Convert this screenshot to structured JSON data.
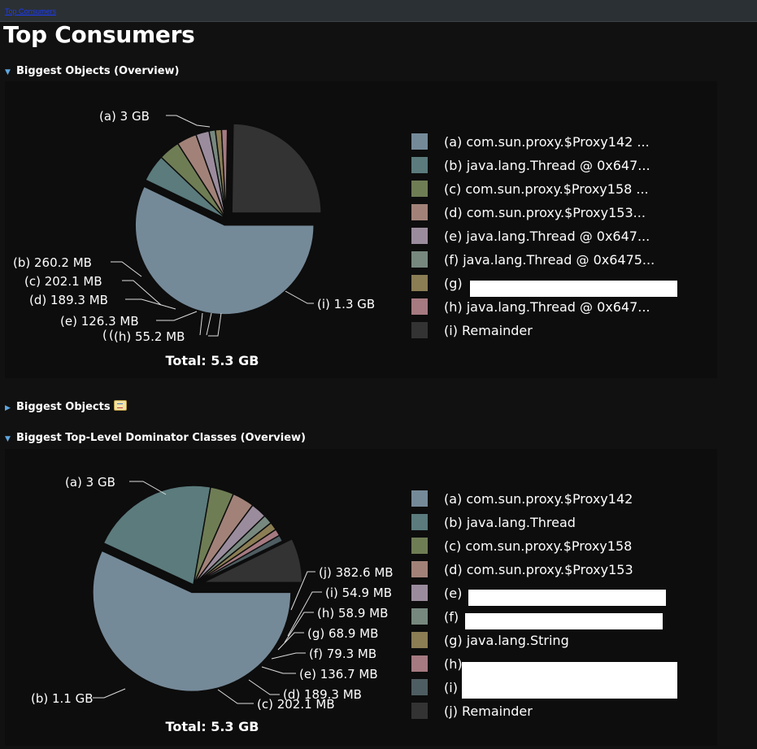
{
  "topbar": {
    "link_label": "Top Consumers"
  },
  "page_title": "Top Consumers",
  "sections": {
    "s1": {
      "title": "Biggest Objects (Overview)",
      "expanded": true
    },
    "s2": {
      "title": "Biggest Objects",
      "expanded": false,
      "icon": "report-icon"
    },
    "s3": {
      "title": "Biggest Top-Level Dominator Classes (Overview)",
      "expanded": true
    }
  },
  "colors": {
    "a": "#758a99",
    "b": "#5b7b7d",
    "c": "#6f7d55",
    "d": "#a28278",
    "e": "#9b8c9d",
    "f": "#77887f",
    "g": "#8b7d54",
    "h": "#a57a80",
    "i": "#4e5d61",
    "remainder": "#333333"
  },
  "chart_data": [
    {
      "type": "pie",
      "title": "",
      "total": "Total: 5.3 GB",
      "slices": [
        {
          "key": "a",
          "label": "(a)  3 GB",
          "legend": "(a)  com.sun.proxy.$Proxy142 ...",
          "value_gb": 3.0,
          "color": "a"
        },
        {
          "key": "b",
          "label": "(b)  260.2 MB",
          "legend": "(b)  java.lang.Thread @ 0x647...",
          "value_gb": 0.2602,
          "color": "b"
        },
        {
          "key": "c",
          "label": "(c)  202.1 MB",
          "legend": "(c)  com.sun.proxy.$Proxy158 ...",
          "value_gb": 0.2021,
          "color": "c"
        },
        {
          "key": "d",
          "label": "(d)  189.3 MB",
          "legend": "(d)  com.sun.proxy.$Proxy153...",
          "value_gb": 0.1893,
          "color": "d"
        },
        {
          "key": "e",
          "label": "(e)  126.3 MB",
          "legend": "(e)  java.lang.Thread @ 0x647...",
          "value_gb": 0.1263,
          "color": "e"
        },
        {
          "key": "f",
          "label": "(f)",
          "legend": "(f)  java.lang.Thread @ 0x6475...",
          "value_gb": 0.06,
          "color": "f"
        },
        {
          "key": "g",
          "label": "(g)",
          "legend": "(g)",
          "value_gb": 0.058,
          "color": "g",
          "redacted": true
        },
        {
          "key": "h",
          "label": "(h)  55.2 MB",
          "legend": "(h)  java.lang.Thread @ 0x647...",
          "value_gb": 0.0552,
          "color": "h"
        },
        {
          "key": "i",
          "label": "(i)  1.3 GB",
          "legend": "(i)  Remainder",
          "value_gb": 1.3,
          "color": "remainder"
        }
      ]
    },
    {
      "type": "pie",
      "title": "",
      "total": "Total: 5.3 GB",
      "slices": [
        {
          "key": "a",
          "label": "(a)  3 GB",
          "legend": "(a)  com.sun.proxy.$Proxy142",
          "value_gb": 3.0,
          "color": "a"
        },
        {
          "key": "b",
          "label": "(b)  1.1 GB",
          "legend": "(b)  java.lang.Thread",
          "value_gb": 1.1,
          "color": "b"
        },
        {
          "key": "c",
          "label": "(c)  202.1 MB",
          "legend": "(c)  com.sun.proxy.$Proxy158",
          "value_gb": 0.2021,
          "color": "c"
        },
        {
          "key": "d",
          "label": "(d)  189.3 MB",
          "legend": "(d)  com.sun.proxy.$Proxy153",
          "value_gb": 0.1893,
          "color": "d"
        },
        {
          "key": "e",
          "label": "(e)  136.7 MB",
          "legend": "(e)",
          "value_gb": 0.1367,
          "color": "e",
          "redacted": true
        },
        {
          "key": "f",
          "label": "(f)  79.3 MB",
          "legend": "(f)",
          "value_gb": 0.0793,
          "color": "f",
          "redacted": true
        },
        {
          "key": "g",
          "label": "(g)  68.9 MB",
          "legend": "(g)  java.lang.String",
          "value_gb": 0.0689,
          "color": "g"
        },
        {
          "key": "h",
          "label": "(h)  58.9 MB",
          "legend": "(h)",
          "value_gb": 0.0589,
          "color": "h",
          "redacted": true
        },
        {
          "key": "i",
          "label": "(i)  54.9 MB",
          "legend": "(i)",
          "value_gb": 0.0549,
          "color": "i",
          "redacted": true
        },
        {
          "key": "j",
          "label": "(j)  382.6 MB",
          "legend": "(j)  Remainder",
          "value_gb": 0.3826,
          "color": "remainder"
        }
      ]
    }
  ]
}
